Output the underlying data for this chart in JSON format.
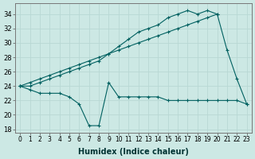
{
  "xlabel": "Humidex (Indice chaleur)",
  "xlim": [
    -0.5,
    23.5
  ],
  "ylim": [
    17.5,
    35.5
  ],
  "yticks": [
    18,
    20,
    22,
    24,
    26,
    28,
    30,
    32,
    34
  ],
  "xticks": [
    0,
    1,
    2,
    3,
    4,
    5,
    6,
    7,
    8,
    9,
    10,
    11,
    12,
    13,
    14,
    15,
    16,
    17,
    18,
    19,
    20,
    21,
    22,
    23
  ],
  "bg_color": "#cce8e4",
  "grid_color": "#b8d8d4",
  "line_color": "#006060",
  "line_straight": [
    24.0,
    24.5,
    25.0,
    25.5,
    26.0,
    26.5,
    27.0,
    27.5,
    28.0,
    28.5,
    29.0,
    29.5,
    30.0,
    30.5,
    31.0,
    31.5,
    32.0,
    32.5,
    33.0,
    33.5,
    34.0,
    null,
    null,
    null
  ],
  "line_upper": [
    24.0,
    24.0,
    24.5,
    25.0,
    25.5,
    26.0,
    26.5,
    27.0,
    27.5,
    28.5,
    29.5,
    30.5,
    31.5,
    32.0,
    32.5,
    33.5,
    34.0,
    34.5,
    34.0,
    34.5,
    34.0,
    29.0,
    25.0,
    21.5
  ],
  "line_dip": [
    24.0,
    23.5,
    23.0,
    23.0,
    23.0,
    22.5,
    21.5,
    18.5,
    18.5,
    24.5,
    22.5,
    22.5,
    22.5,
    22.5,
    22.5,
    22.0,
    22.0,
    22.0,
    22.0,
    22.0,
    22.0,
    22.0,
    22.0,
    21.5
  ]
}
